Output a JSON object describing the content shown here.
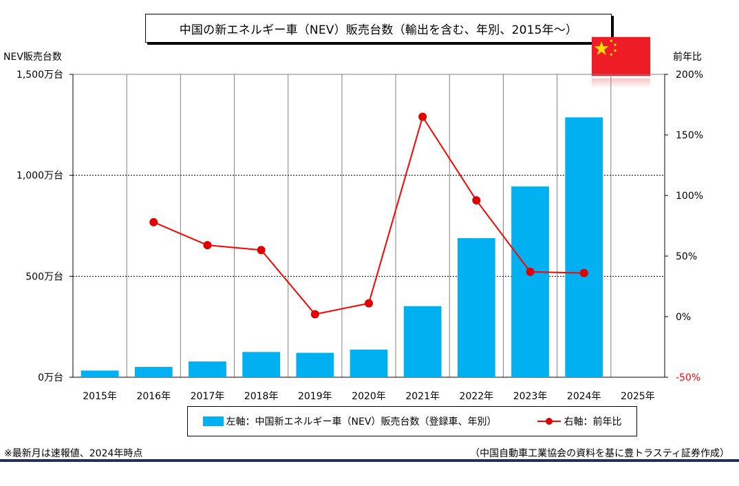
{
  "title": "中国の新エネルギー車（NEV）販売台数（輸出を含む、年別、2015年～）",
  "left_axis_title": "NEV販売台数",
  "right_axis_title": "前年比",
  "flag_icon": "china-flag-icon",
  "colors": {
    "bar": "#00B0F0",
    "line": "#FF0000",
    "marker": "#E00000",
    "grid": "#000000"
  },
  "legend": {
    "bar_label": "左軸：中国新エネルギー車（NEV）販売台数（登録車、年別）",
    "line_label": "右軸：前年比"
  },
  "footnote_left": "※最新月は速報値、2024年時点",
  "footnote_right": "（中国自動車工業協会の資料を基に豊トラスティ証券作成）",
  "chart_data": {
    "type": "bar",
    "categories": [
      "2015年",
      "2016年",
      "2017年",
      "2018年",
      "2019年",
      "2020年",
      "2021年",
      "2022年",
      "2023年",
      "2024年",
      "2025年"
    ],
    "series": [
      {
        "name": "左軸：中国新エネルギー車（NEV）販売台数（登録車、年別）",
        "type": "bar",
        "axis": "left",
        "values": [
          33,
          51,
          78,
          125,
          121,
          137,
          352,
          689,
          945,
          1287,
          null
        ]
      },
      {
        "name": "右軸：前年比",
        "type": "line",
        "axis": "right",
        "values": [
          null,
          78,
          59,
          55,
          2,
          11,
          165,
          96,
          37,
          36,
          null
        ]
      }
    ],
    "left_axis": {
      "ylim": [
        0,
        1500
      ],
      "ticks": [
        0,
        500,
        1000,
        1500
      ],
      "tick_labels": [
        "0万台",
        "500万台",
        "1,000万台",
        "1,500万台"
      ]
    },
    "right_axis": {
      "ylim": [
        -50,
        200
      ],
      "ticks": [
        -50,
        0,
        50,
        100,
        150,
        200
      ],
      "tick_labels": [
        "-50%",
        "0%",
        "50%",
        "100%",
        "150%",
        "200%"
      ]
    },
    "gridlines_y": [
      500,
      1000
    ],
    "vertical_gridlines": true,
    "legend_position": "bottom"
  }
}
